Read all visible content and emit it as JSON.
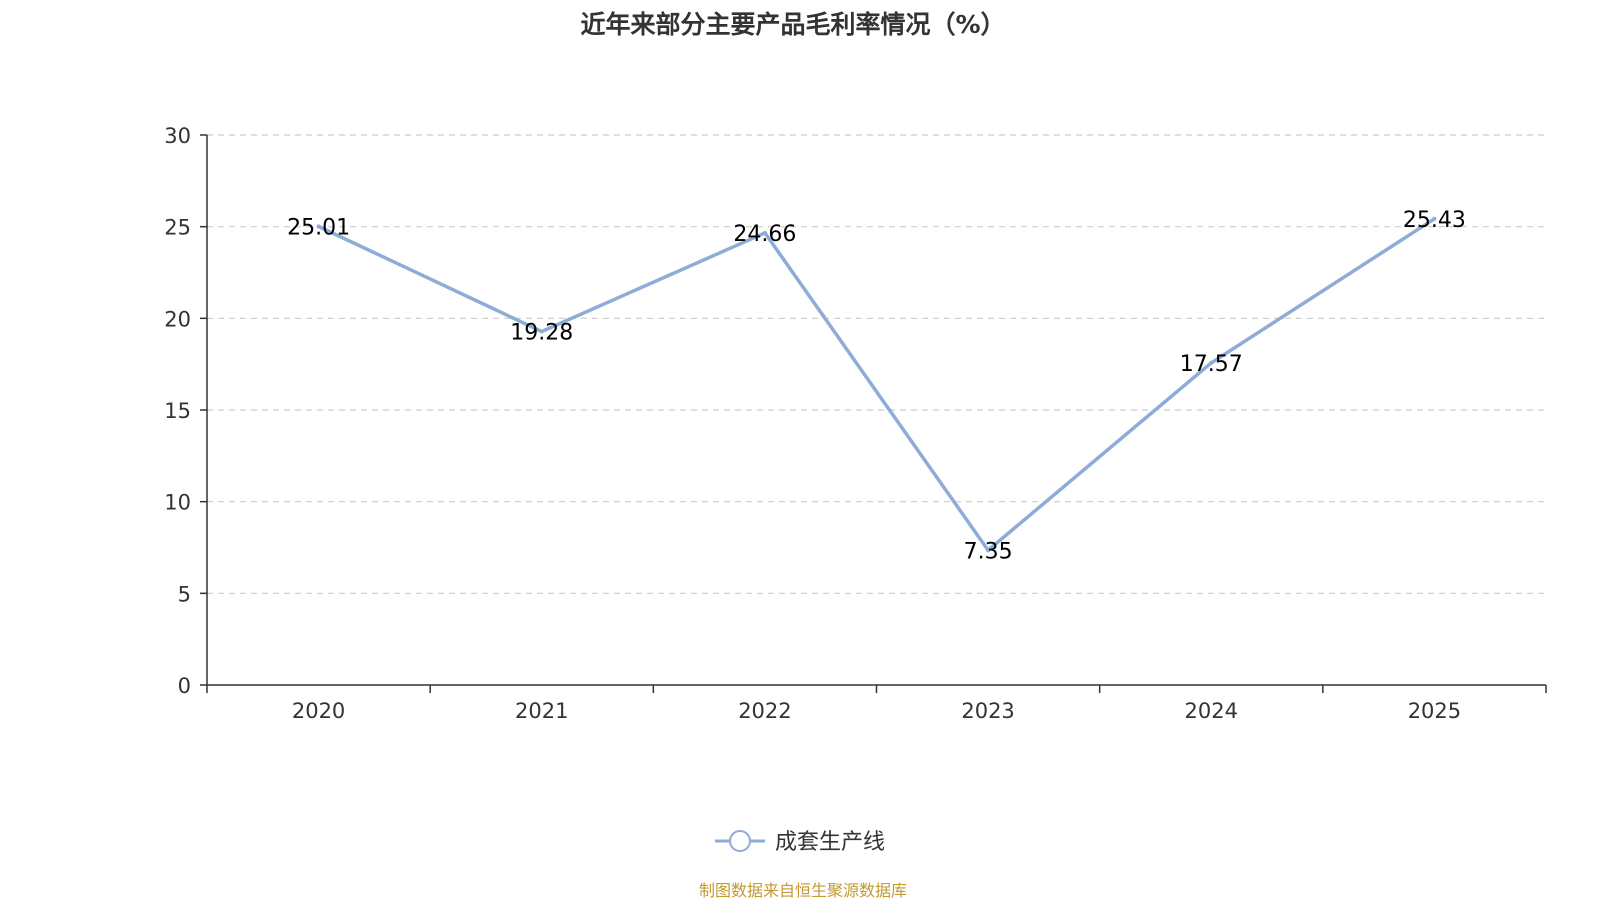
{
  "chart_data": {
    "type": "line",
    "title": "近年来部分主要产品毛利率情况（%）",
    "categories": [
      "2020",
      "2021",
      "2022",
      "2023",
      "2024",
      "2025"
    ],
    "series": [
      {
        "name": "成套生产线",
        "values": [
          25.01,
          19.28,
          24.66,
          7.35,
          17.57,
          25.43
        ],
        "labels": [
          "25.01",
          "19.28",
          "24.66",
          "7.35",
          "17.57",
          "25.43"
        ]
      }
    ],
    "y_ticks": [
      "0",
      "5",
      "10",
      "15",
      "20",
      "25",
      "30"
    ],
    "ylim": [
      0,
      30
    ],
    "xlabel": "",
    "ylabel": "",
    "grid": true,
    "legend_position": "bottom-center"
  },
  "source": "制图数据来自恒生聚源数据库",
  "colors": {
    "series": "#8EACD8",
    "axis": "#333333",
    "grid": "#CCCCCC",
    "source": "#C49A32"
  }
}
